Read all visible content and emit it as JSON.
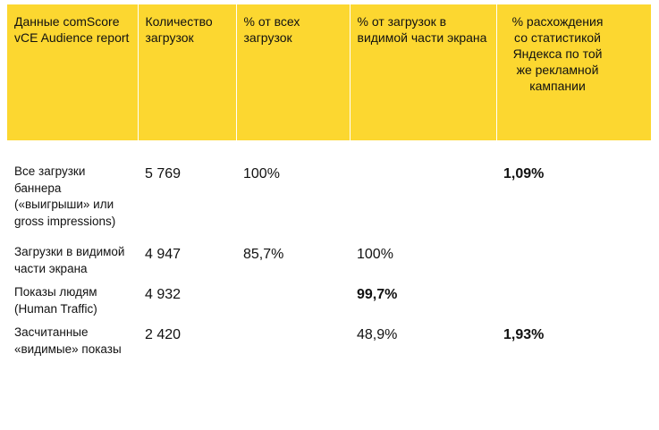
{
  "table": {
    "headers": [
      "Данные comScore vCE Audience report",
      "Количество загрузок",
      "% от всех загрузок",
      "% от загрузок в видимой части экрана",
      "% расхождения со статистикой Яндекса по той же рекламной кампании"
    ],
    "rows": [
      {
        "label": "Все загрузки баннера («выигрыши» или gross impressions)",
        "count": "5 769",
        "pct_all": "100%",
        "pct_visible": "",
        "pct_diff": "1,09%"
      },
      {
        "label": "Загрузки в видимой части экрана",
        "count": "4 947",
        "pct_all": "85,7%",
        "pct_visible": "100%",
        "pct_diff": ""
      },
      {
        "label": "Показы людям (Human Traffic)",
        "count": "4 932",
        "pct_all": "",
        "pct_visible": "99,7%",
        "pct_diff": ""
      },
      {
        "label": "Засчитанные «видимые» показы",
        "count": "2 420",
        "pct_all": "",
        "pct_visible": "48,9%",
        "pct_diff": "1,93%"
      }
    ]
  },
  "colors": {
    "header_bg": "#fcd730",
    "text": "#111111"
  }
}
